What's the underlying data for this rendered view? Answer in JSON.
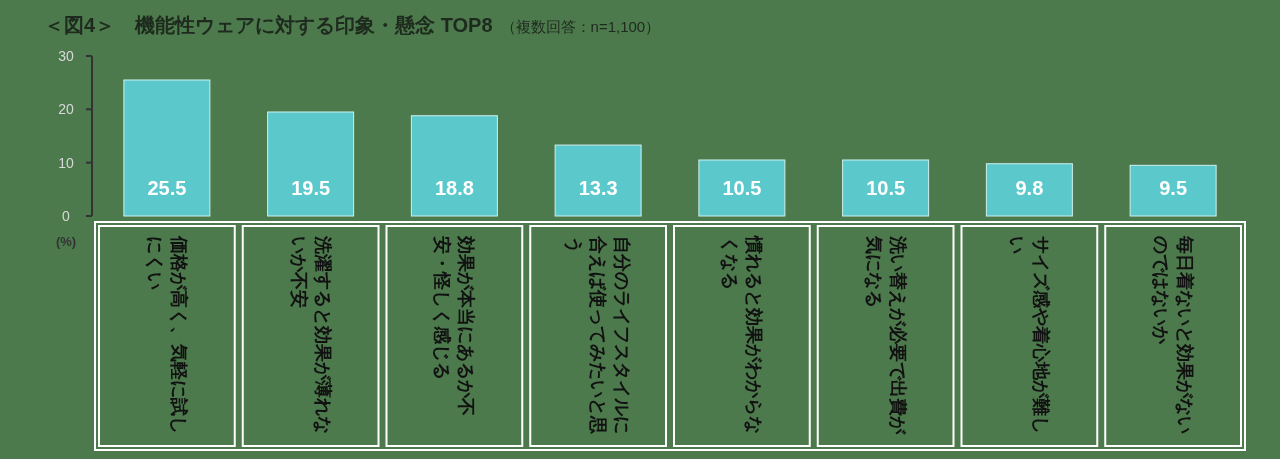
{
  "chart_data": {
    "type": "bar",
    "title": "＜図4＞　機能性ウェアに対する印象・懸念 TOP8",
    "subtitle": "（複数回答：n=1,100）",
    "ylabel": "(%)",
    "categories": [
      "価格が高く、気軽に試しにくい",
      "洗濯すると効果が薄れないか不安",
      "効果が本当にあるか不安・怪しく感じる",
      "自分のライフスタイルに合えば使ってみたいと思う",
      "慣れると効果がわからなくなる",
      "洗い替えが必要で出費が気になる",
      "サイズ感や着心地が難しい",
      "毎日着ないと効果がないのではないか"
    ],
    "values": [
      25.5,
      19.5,
      18.8,
      13.3,
      10.5,
      10.5,
      9.8,
      9.5
    ],
    "color": "#5bc8cc",
    "ylim": [
      0,
      30
    ],
    "yticks": [
      0,
      10,
      20,
      30
    ],
    "data_labels": true
  }
}
